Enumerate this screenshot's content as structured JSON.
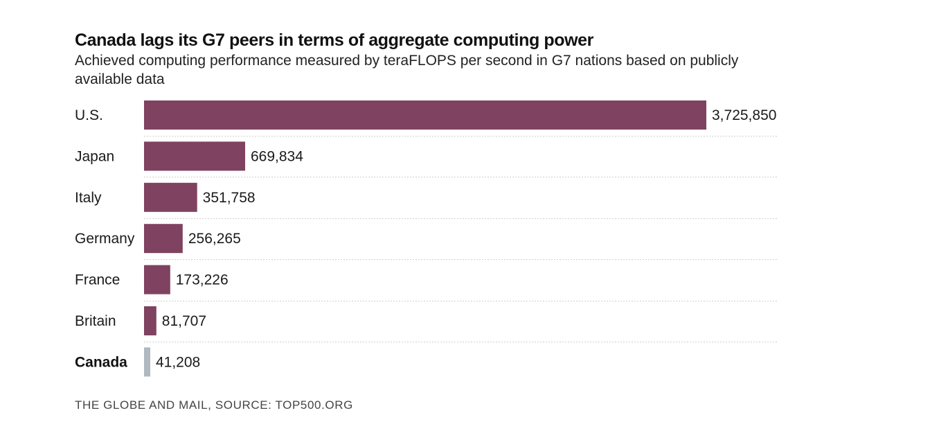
{
  "chart_data": {
    "type": "bar",
    "orientation": "horizontal",
    "title": "Canada lags its G7 peers in terms of aggregate computing power",
    "subtitle": "Achieved computing performance measured by teraFLOPS per second in G7 nations based on publicly available data",
    "categories": [
      "U.S.",
      "Japan",
      "Italy",
      "Germany",
      "France",
      "Britain",
      "Canada"
    ],
    "values": [
      3725850,
      669834,
      351758,
      256265,
      173226,
      81707,
      41208
    ],
    "value_labels": [
      "3,725,850",
      "669,834",
      "351,758",
      "256,265",
      "173,226",
      "81,707",
      "41,208"
    ],
    "highlight_category": "Canada",
    "colors": {
      "bar": "#7f4260",
      "highlight_bar": "#b0b9c0"
    },
    "xlim": [
      0,
      3725850
    ],
    "grid": false,
    "legend": "none",
    "source": "THE GLOBE AND MAIL, SOURCE: TOP500.ORG"
  }
}
